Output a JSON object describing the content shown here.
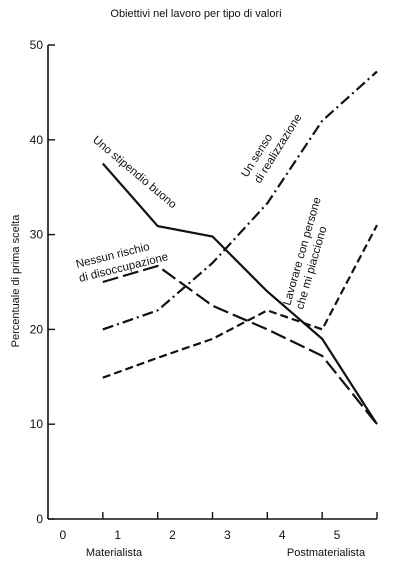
{
  "chart_data": {
    "type": "line",
    "title": "Obiettivi nel lavoro per tipo di valori",
    "xlabel": "",
    "ylabel": "Percentuale di prima scelta",
    "x_start_label": "Materialista",
    "x_end_label": "Postmaterialista",
    "x": [
      0,
      1,
      2,
      3,
      4,
      5
    ],
    "xlim": [
      -1,
      5
    ],
    "ylim": [
      0,
      50
    ],
    "yticks": [
      0,
      10,
      20,
      30,
      40,
      50
    ],
    "grid": false,
    "legend": "inline labels",
    "series": [
      {
        "name": "Uno stipendio buono",
        "style": "solid",
        "values": [
          37.5,
          30.9,
          29.8,
          24.0,
          19.0,
          10.0
        ]
      },
      {
        "name": "Un senso di realizzazione",
        "style": "dashdot",
        "values": [
          20.0,
          22.0,
          27.0,
          33.3,
          42.0,
          47.2
        ]
      },
      {
        "name": "Nessun rischio di disoccupazione",
        "style": "longdash",
        "values": [
          25.0,
          26.7,
          22.5,
          20.0,
          17.2,
          10.0
        ]
      },
      {
        "name": "Lavorare con persone che mi piacciono",
        "style": "dashed",
        "values": [
          14.9,
          17.0,
          19.0,
          22.0,
          20.0,
          31.0
        ]
      }
    ],
    "labels": {
      "s0a": "Uno stipendio buono",
      "s1a": "Un senso",
      "s1b": "di realizzazione",
      "s2a": "Nessun rischio",
      "s2b": "di disoccupazione",
      "s3a": "Lavorare con persone",
      "s3b": "che mi piacciono"
    }
  }
}
